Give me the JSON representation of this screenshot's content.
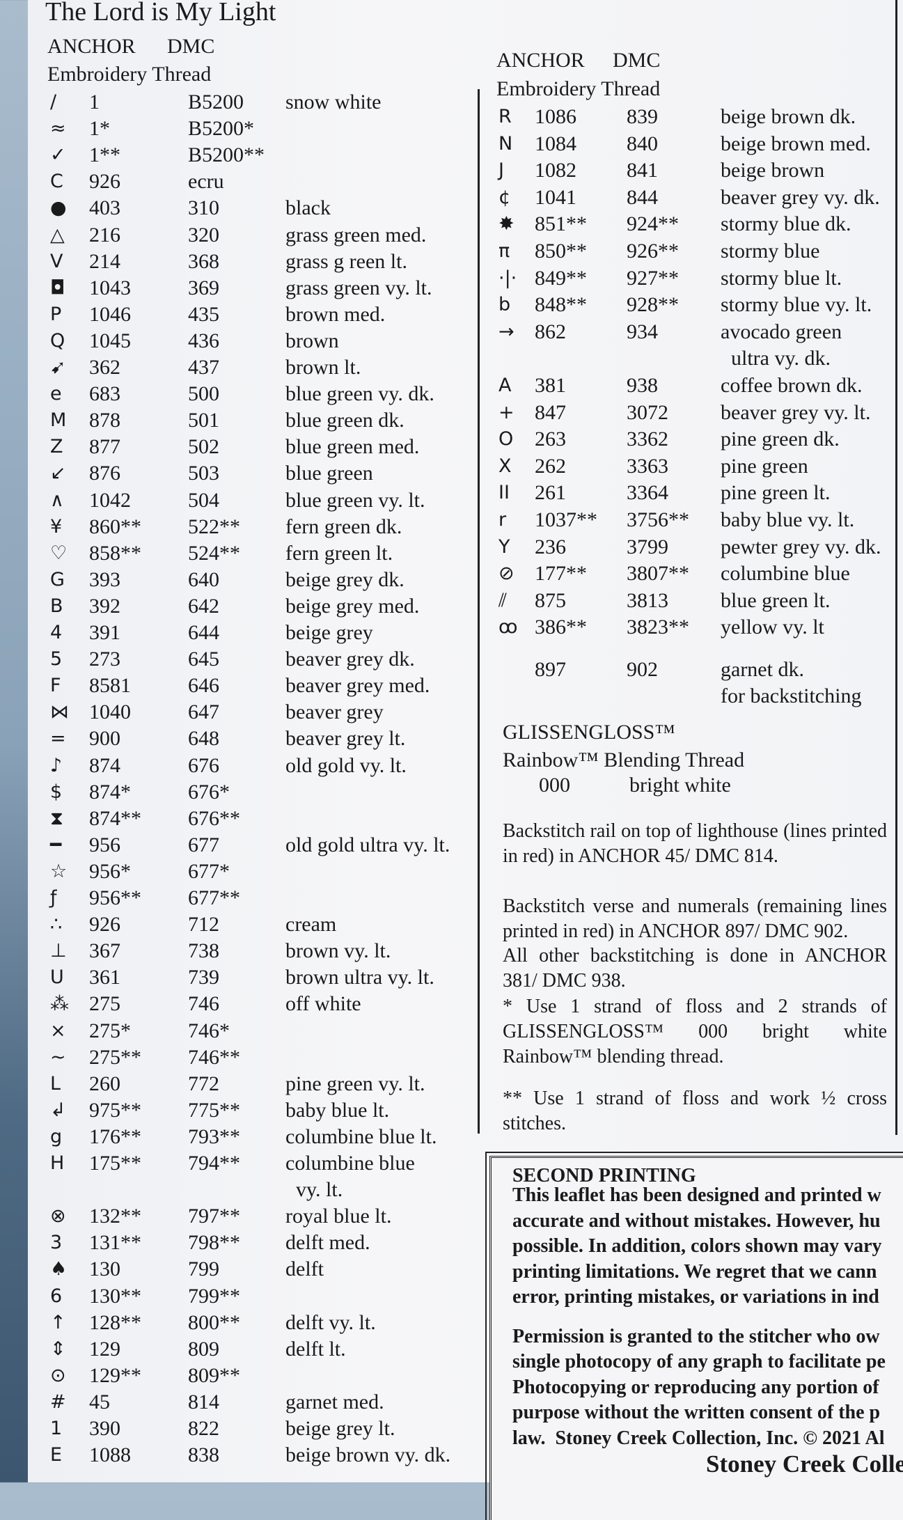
{
  "title": "The Lord is My Light",
  "left": {
    "header": {
      "anchor": "ANCHOR",
      "dmc": "DMC",
      "thread": "Embroidery Thread"
    },
    "rows": [
      {
        "symbol": "/",
        "anchor": "1",
        "dmc": "B5200",
        "name": "snow white"
      },
      {
        "symbol": "≈",
        "anchor": "1*",
        "dmc": "B5200*"
      },
      {
        "symbol": "✓",
        "anchor": "1**",
        "dmc": "B5200**"
      },
      {
        "symbol": "C",
        "anchor": "926",
        "dmc": "ecru"
      },
      {
        "symbol": "●",
        "anchor": "403",
        "dmc": "310",
        "name": "black"
      },
      {
        "symbol": "△",
        "anchor": "216",
        "dmc": "320",
        "name": "grass green med."
      },
      {
        "symbol": "V",
        "anchor": "214",
        "dmc": "368",
        "name": "grass g reen lt."
      },
      {
        "symbol": "◘",
        "anchor": "1043",
        "dmc": "369",
        "name": "grass green vy. lt."
      },
      {
        "symbol": "P",
        "anchor": "1046",
        "dmc": "435",
        "name": "brown med."
      },
      {
        "symbol": "Q",
        "anchor": "1045",
        "dmc": "436",
        "name": "brown"
      },
      {
        "symbol": "➹",
        "anchor": "362",
        "dmc": "437",
        "name": "brown lt."
      },
      {
        "symbol": "e",
        "anchor": "683",
        "dmc": "500",
        "name": "blue green vy. dk."
      },
      {
        "symbol": "M",
        "anchor": "878",
        "dmc": "501",
        "name": "blue green dk."
      },
      {
        "symbol": "Z",
        "anchor": "877",
        "dmc": "502",
        "name": "blue green med."
      },
      {
        "symbol": "↙",
        "anchor": "876",
        "dmc": "503",
        "name": "blue green"
      },
      {
        "symbol": "∧",
        "anchor": "1042",
        "dmc": "504",
        "name": "blue green vy. lt."
      },
      {
        "symbol": "¥",
        "anchor": "860**",
        "dmc": "522**",
        "name": "fern green dk."
      },
      {
        "symbol": "♡",
        "anchor": "858**",
        "dmc": "524**",
        "name": "fern green lt."
      },
      {
        "symbol": "G",
        "anchor": "393",
        "dmc": "640",
        "name": "beige grey dk."
      },
      {
        "symbol": "B",
        "anchor": "392",
        "dmc": "642",
        "name": "beige grey med."
      },
      {
        "symbol": "4",
        "anchor": "391",
        "dmc": "644",
        "name": "beige grey"
      },
      {
        "symbol": "5",
        "anchor": "273",
        "dmc": "645",
        "name": "beaver grey dk."
      },
      {
        "symbol": "F",
        "anchor": "8581",
        "dmc": "646",
        "name": "beaver grey med."
      },
      {
        "symbol": "⋈",
        "anchor": "1040",
        "dmc": "647",
        "name": "beaver grey"
      },
      {
        "symbol": "=",
        "anchor": "900",
        "dmc": "648",
        "name": "beaver grey lt."
      },
      {
        "symbol": "♪",
        "anchor": "874",
        "dmc": "676",
        "name": "old gold vy. lt."
      },
      {
        "symbol": "$",
        "anchor": "874*",
        "dmc": "676*"
      },
      {
        "symbol": "⧗",
        "anchor": "874**",
        "dmc": "676**"
      },
      {
        "symbol": "━",
        "anchor": "956",
        "dmc": "677",
        "name": "old gold ultra vy. lt."
      },
      {
        "symbol": "☆",
        "anchor": "956*",
        "dmc": "677*"
      },
      {
        "symbol": "ƒ",
        "anchor": "956**",
        "dmc": "677**"
      },
      {
        "symbol": "∴",
        "anchor": "926",
        "dmc": "712",
        "name": "cream"
      },
      {
        "symbol": "⊥",
        "anchor": "367",
        "dmc": "738",
        "name": "brown vy. lt."
      },
      {
        "symbol": "U",
        "anchor": "361",
        "dmc": "739",
        "name": "brown ultra vy. lt."
      },
      {
        "symbol": "⁂",
        "anchor": "275",
        "dmc": "746",
        "name": "off white"
      },
      {
        "symbol": "⨯",
        "anchor": "275*",
        "dmc": "746*"
      },
      {
        "symbol": "~",
        "anchor": "275**",
        "dmc": "746**"
      },
      {
        "symbol": "L",
        "anchor": "260",
        "dmc": "772",
        "name": "pine green vy. lt."
      },
      {
        "symbol": "↲",
        "anchor": "975**",
        "dmc": "775**",
        "name": "baby blue lt."
      },
      {
        "symbol": "g",
        "anchor": "176**",
        "dmc": "793**",
        "name": "columbine blue lt."
      },
      {
        "symbol": "H",
        "anchor": "175**",
        "dmc": "794**",
        "name": "columbine blue\n  vy. lt."
      },
      {
        "symbol": "⊗",
        "anchor": "132**",
        "dmc": "797**",
        "name": "royal blue lt."
      },
      {
        "symbol": "3",
        "anchor": "131**",
        "dmc": "798**",
        "name": "delft med."
      },
      {
        "symbol": "♠",
        "anchor": "130",
        "dmc": "799",
        "name": "delft"
      },
      {
        "symbol": "6",
        "anchor": "130**",
        "dmc": "799**"
      },
      {
        "symbol": "↑",
        "anchor": "128**",
        "dmc": "800**",
        "name": "delft vy. lt."
      },
      {
        "symbol": "⇕",
        "anchor": "129",
        "dmc": "809",
        "name": "delft lt."
      },
      {
        "symbol": "⊙",
        "anchor": "129**",
        "dmc": "809**"
      },
      {
        "symbol": "#",
        "anchor": "45",
        "dmc": "814",
        "name": "garnet med."
      },
      {
        "symbol": "1",
        "anchor": "390",
        "dmc": "822",
        "name": "beige grey lt."
      },
      {
        "symbol": "E",
        "anchor": "1088",
        "dmc": "838",
        "name": "beige brown vy. dk."
      }
    ]
  },
  "right": {
    "header": {
      "anchor": "ANCHOR",
      "dmc": "DMC",
      "thread": "Embroidery Thread"
    },
    "rows": [
      {
        "symbol": "R",
        "anchor": "1086",
        "dmc": "839",
        "name": "beige brown dk."
      },
      {
        "symbol": "N",
        "anchor": "1084",
        "dmc": "840",
        "name": "beige brown med."
      },
      {
        "symbol": "J",
        "anchor": "1082",
        "dmc": "841",
        "name": "beige brown"
      },
      {
        "symbol": "¢",
        "anchor": "1041",
        "dmc": "844",
        "name": "beaver grey vy. dk."
      },
      {
        "symbol": "✸",
        "anchor": "851**",
        "dmc": "924**",
        "name": "stormy blue dk."
      },
      {
        "symbol": "π",
        "anchor": "850**",
        "dmc": "926**",
        "name": "stormy blue"
      },
      {
        "symbol": "·|·",
        "anchor": "849**",
        "dmc": "927**",
        "name": "stormy blue lt."
      },
      {
        "symbol": "b",
        "anchor": "848**",
        "dmc": "928**",
        "name": "stormy blue vy. lt."
      },
      {
        "symbol": "→",
        "anchor": "862",
        "dmc": "934",
        "name": "avocado green\n  ultra vy. dk."
      },
      {
        "symbol": "A",
        "anchor": "381",
        "dmc": "938",
        "name": "coffee brown dk."
      },
      {
        "symbol": "+",
        "anchor": "847",
        "dmc": "3072",
        "name": "beaver grey vy. lt."
      },
      {
        "symbol": "O",
        "anchor": "263",
        "dmc": "3362",
        "name": "pine green dk."
      },
      {
        "symbol": "X",
        "anchor": "262",
        "dmc": "3363",
        "name": "pine green"
      },
      {
        "symbol": "II",
        "anchor": "261",
        "dmc": "3364",
        "name": "pine green lt."
      },
      {
        "symbol": "r",
        "anchor": "1037**",
        "dmc": "3756**",
        "name": "baby blue vy. lt."
      },
      {
        "symbol": "Y",
        "anchor": "236",
        "dmc": "3799",
        "name": "pewter grey vy. dk."
      },
      {
        "symbol": "⊘",
        "anchor": "177**",
        "dmc": "3807**",
        "name": "columbine blue"
      },
      {
        "symbol": "⫽",
        "anchor": "875",
        "dmc": "3813",
        "name": "blue green lt."
      },
      {
        "symbol": "ꝏ",
        "anchor": "386**",
        "dmc": "3823**",
        "name": "yellow vy. lt"
      },
      {
        "anchor": "897",
        "dmc": "902",
        "name": "garnet dk.\nfor backstitching"
      }
    ]
  },
  "glissengloss": {
    "brand": "GLISSENGLOSS™",
    "thread": "Rainbow™ Blending Thread",
    "code": "000",
    "name": "bright white"
  },
  "notes": [
    "Backstitch rail on top of lighthouse (lines printed in red) in ANCHOR 45/ DMC 814.",
    "Backstitch verse and numerals (remaining lines printed in red) in ANCHOR 897/ DMC 902.",
    "All other backstitching is done in ANCHOR 381/ DMC 938.",
    "* Use 1 strand of floss and 2 strands of GLISSENGLOSS™ 000 bright white Rainbow™ blending thread.",
    "** Use 1 strand of floss and work ½ cross stitches."
  ],
  "second_printing": {
    "heading": "SECOND PRINTING",
    "paragraphs": [
      [
        "This leaflet has been designed and printed w",
        "accurate and without mistakes. However, hu",
        "possible. In addition, colors shown may vary",
        "printing limitations. We regret that we cann",
        "error, printing mistakes, or variations in ind"
      ],
      [
        "Permission is granted to the stitcher who ow",
        "single photocopy of any graph to facilitate pe",
        "Photocopying or reproducing any portion of",
        "purpose without the written consent of the p",
        "law.  Stoney Creek Collection, Inc. © 2021 Al"
      ]
    ]
  },
  "footer": "Stoney Creek Colle"
}
